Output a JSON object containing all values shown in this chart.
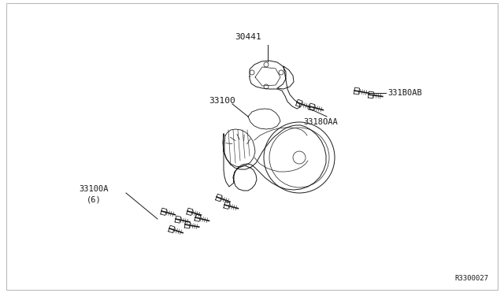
{
  "bg_color": "#ffffff",
  "border_color": "#bbbbbb",
  "line_color": "#1a1a1a",
  "text_color": "#1a1a1a",
  "ref_code": "R3300027",
  "label_30441": "30441",
  "label_33100": "33100",
  "label_3318oaa": "3318OAA",
  "label_3318oab": "331B0AB",
  "label_33100a": "33100A",
  "label_6": "(6)"
}
